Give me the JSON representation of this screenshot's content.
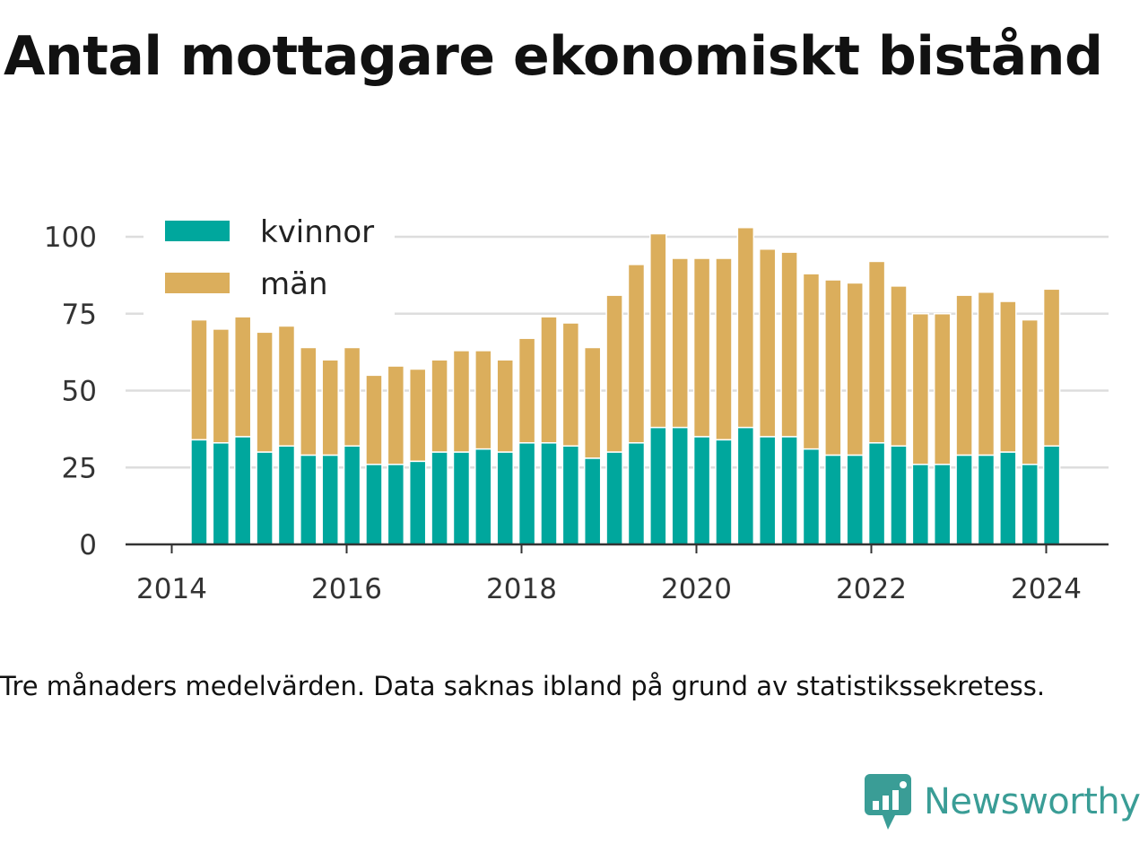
{
  "title": "Antal mottagare ekonomiskt bistånd",
  "note": "Tre månaders medelvärden. Data saknas ibland på grund av statistikssekretess.",
  "brand": {
    "name": "Newsworthy",
    "icon": "newsworthy-logo-icon",
    "color": "#3a9d96"
  },
  "colors": {
    "kvinnor": "#00a79d",
    "man": "#dbae5c",
    "grid": "#dddddd",
    "axis": "#333333"
  },
  "chart_data": {
    "type": "bar",
    "stacked": true,
    "x_unit": "quarter",
    "x": [
      "2014-Q2",
      "2014-Q3",
      "2014-Q4",
      "2015-Q1",
      "2015-Q2",
      "2015-Q3",
      "2015-Q4",
      "2016-Q1",
      "2016-Q2",
      "2016-Q3",
      "2016-Q4",
      "2017-Q1",
      "2017-Q2",
      "2017-Q3",
      "2017-Q4",
      "2018-Q1",
      "2018-Q2",
      "2018-Q3",
      "2018-Q4",
      "2019-Q1",
      "2019-Q2",
      "2019-Q3",
      "2019-Q4",
      "2020-Q1",
      "2020-Q2",
      "2020-Q3",
      "2020-Q4",
      "2021-Q1",
      "2021-Q2",
      "2021-Q3",
      "2021-Q4",
      "2022-Q1",
      "2022-Q2",
      "2022-Q3",
      "2022-Q4",
      "2023-Q1",
      "2023-Q2",
      "2023-Q3",
      "2023-Q4",
      "2024-Q1"
    ],
    "series": [
      {
        "name": "kvinnor",
        "color": "#00a79d",
        "values": [
          34,
          33,
          35,
          30,
          32,
          29,
          29,
          32,
          26,
          26,
          27,
          30,
          30,
          31,
          30,
          33,
          33,
          32,
          28,
          30,
          33,
          38,
          38,
          35,
          34,
          38,
          35,
          35,
          31,
          29,
          29,
          33,
          32,
          26,
          26,
          29,
          29,
          30,
          26,
          32
        ]
      },
      {
        "name": "män",
        "color": "#dbae5c",
        "values": [
          39,
          37,
          39,
          39,
          39,
          35,
          31,
          32,
          29,
          32,
          30,
          30,
          33,
          32,
          30,
          34,
          41,
          40,
          36,
          51,
          58,
          63,
          55,
          58,
          59,
          65,
          61,
          60,
          57,
          57,
          56,
          59,
          52,
          49,
          49,
          52,
          53,
          49,
          47,
          51
        ]
      }
    ],
    "xticks": [
      "2014",
      "2016",
      "2018",
      "2020",
      "2022",
      "2024"
    ],
    "yticks": [
      0,
      25,
      50,
      75,
      100
    ],
    "ylim": [
      0,
      105
    ],
    "legend": [
      "kvinnor",
      "män"
    ],
    "legend_position": "top-left",
    "grid": "horizontal"
  }
}
